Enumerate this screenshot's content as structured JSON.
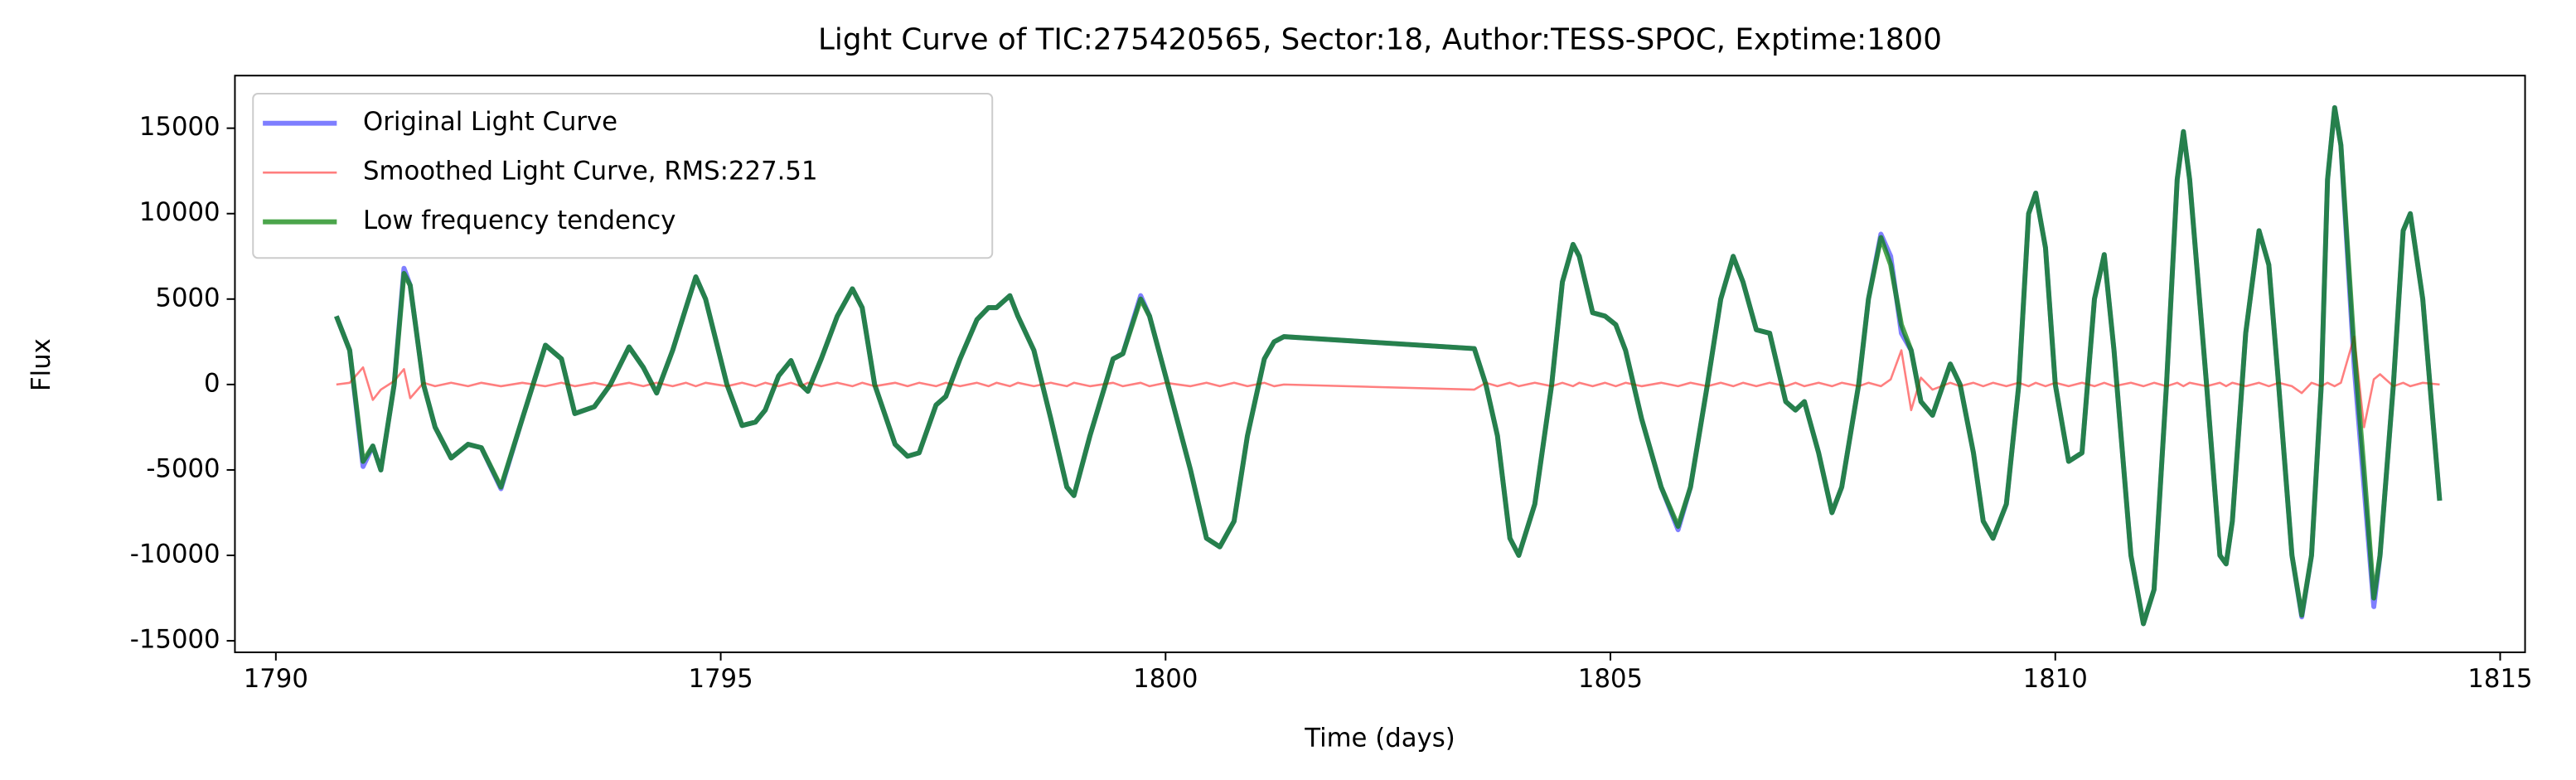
{
  "chart_data": {
    "type": "line",
    "title": "Light Curve of TIC:275420565, Sector:18, Author:TESS-SPOC, Exptime:1800",
    "xlabel": "Time (days)",
    "ylabel": "Flux",
    "xlim": [
      1789.54,
      1815.28
    ],
    "ylim": [
      -15673,
      18077
    ],
    "xticks": [
      1790,
      1795,
      1800,
      1805,
      1810,
      1815
    ],
    "yticks": [
      -15000,
      -10000,
      -5000,
      0,
      5000,
      10000,
      15000
    ],
    "legend": "upper left",
    "grid": false,
    "x": [
      1790.68,
      1790.83,
      1790.98,
      1791.09,
      1791.18,
      1791.33,
      1791.44,
      1791.51,
      1791.66,
      1791.79,
      1791.97,
      1792.16,
      1792.31,
      1792.53,
      1792.77,
      1793.03,
      1793.21,
      1793.36,
      1793.58,
      1793.76,
      1793.97,
      1794.13,
      1794.28,
      1794.46,
      1794.61,
      1794.72,
      1794.83,
      1795.07,
      1795.24,
      1795.39,
      1795.5,
      1795.65,
      1795.79,
      1795.9,
      1795.98,
      1796.13,
      1796.31,
      1796.48,
      1796.59,
      1796.73,
      1796.96,
      1797.1,
      1797.23,
      1797.42,
      1797.53,
      1797.69,
      1797.88,
      1798.01,
      1798.1,
      1798.25,
      1798.34,
      1798.52,
      1798.71,
      1798.89,
      1798.97,
      1799.15,
      1799.41,
      1799.52,
      1799.72,
      1799.82,
      1800.0,
      1800.28,
      1800.46,
      1800.61,
      1800.77,
      1800.92,
      1801.11,
      1801.22,
      1801.33,
      1803.47,
      1803.6,
      1803.73,
      1803.87,
      1803.97,
      1804.15,
      1804.34,
      1804.46,
      1804.58,
      1804.65,
      1804.8,
      1804.94,
      1805.06,
      1805.17,
      1805.35,
      1805.57,
      1805.76,
      1805.9,
      1806.09,
      1806.24,
      1806.38,
      1806.49,
      1806.64,
      1806.79,
      1806.97,
      1807.08,
      1807.18,
      1807.34,
      1807.49,
      1807.6,
      1807.79,
      1807.9,
      1808.04,
      1808.15,
      1808.27,
      1808.38,
      1808.49,
      1808.62,
      1808.82,
      1808.93,
      1809.08,
      1809.19,
      1809.3,
      1809.45,
      1809.59,
      1809.7,
      1809.78,
      1809.89,
      1810.0,
      1810.15,
      1810.3,
      1810.44,
      1810.55,
      1810.66,
      1810.85,
      1810.99,
      1811.11,
      1811.25,
      1811.37,
      1811.44,
      1811.51,
      1811.7,
      1811.85,
      1811.92,
      1811.99,
      1812.14,
      1812.29,
      1812.4,
      1812.51,
      1812.66,
      1812.77,
      1812.88,
      1812.99,
      1813.06,
      1813.14,
      1813.21,
      1813.36,
      1813.47,
      1813.58,
      1813.65,
      1813.8,
      1813.91,
      1813.99,
      1814.13,
      1814.32
    ],
    "series": [
      {
        "name": "Original Light Curve",
        "color": "#0000ff",
        "values": [
          4000,
          2000,
          -4800,
          -3600,
          -5000,
          0,
          6800,
          5800,
          0,
          -2500,
          -4300,
          -3500,
          -3700,
          -6100,
          -2000,
          2300,
          1500,
          -1700,
          -1300,
          0,
          2200,
          1000,
          -500,
          2000,
          4500,
          6300,
          5000,
          0,
          -2400,
          -2200,
          -1500,
          500,
          1400,
          0,
          -400,
          1500,
          4000,
          5600,
          4500,
          0,
          -3500,
          -4200,
          -4000,
          -1200,
          -700,
          1500,
          3800,
          4500,
          4500,
          5200,
          4000,
          2000,
          -2000,
          -6000,
          -6500,
          -3000,
          1500,
          1800,
          5200,
          4000,
          500,
          -5000,
          -9000,
          -9500,
          -8000,
          -3000,
          1500,
          2500,
          2800,
          2100,
          0,
          -3000,
          -9000,
          -10000,
          -7000,
          0,
          6000,
          8200,
          7500,
          4200,
          4000,
          3500,
          2000,
          -2000,
          -6000,
          -8500,
          -6000,
          0,
          5000,
          7500,
          6000,
          3200,
          3000,
          -1000,
          -1500,
          -1000,
          -4000,
          -7500,
          -6000,
          0,
          5000,
          8800,
          7500,
          3000,
          2000,
          -1000,
          -1800,
          1200,
          0,
          -4000,
          -8000,
          -9000,
          -7000,
          0,
          10000,
          11200,
          8000,
          0,
          -4500,
          -4000,
          5000,
          7600,
          2000,
          -10000,
          -14000,
          -12000,
          0,
          12000,
          14800,
          12000,
          0,
          -10000,
          -10500,
          -8000,
          3000,
          9000,
          7000,
          0,
          -10000,
          -13600,
          -10000,
          0,
          12000,
          16200,
          14000,
          1000,
          -6000,
          -13000,
          -10000,
          0,
          9000,
          10000,
          5000,
          -6800
        ]
      },
      {
        "name": "Smoothed Light Curve, RMS:227.51",
        "color": "#ff0000",
        "values": [
          0,
          100,
          1000,
          -900,
          -300,
          200,
          900,
          -800,
          100,
          -100,
          100,
          -100,
          100,
          -100,
          100,
          -100,
          100,
          -100,
          100,
          -100,
          100,
          -100,
          100,
          -100,
          100,
          -100,
          100,
          -100,
          100,
          -100,
          100,
          -100,
          100,
          -100,
          100,
          -100,
          100,
          -100,
          100,
          -100,
          100,
          -100,
          100,
          -100,
          100,
          -100,
          100,
          -100,
          100,
          -100,
          100,
          -100,
          100,
          -100,
          100,
          -100,
          100,
          -100,
          100,
          -100,
          100,
          -100,
          100,
          -100,
          100,
          -100,
          100,
          -100,
          0,
          -300,
          100,
          -100,
          100,
          -100,
          100,
          -100,
          100,
          -100,
          100,
          -100,
          100,
          -100,
          100,
          -100,
          100,
          -100,
          100,
          -100,
          100,
          -100,
          100,
          -100,
          100,
          -100,
          100,
          -100,
          100,
          -100,
          100,
          -100,
          100,
          -100,
          300,
          2000,
          -1500,
          400,
          -300,
          100,
          -100,
          100,
          -100,
          100,
          -100,
          100,
          -100,
          100,
          -100,
          100,
          -100,
          100,
          -100,
          100,
          -100,
          100,
          -100,
          100,
          -100,
          100,
          -100,
          100,
          -100,
          100,
          -100,
          100,
          -100,
          100,
          -100,
          100,
          -100,
          -500,
          100,
          -100,
          100,
          -100,
          100,
          2800,
          -2500,
          300,
          600,
          -100,
          100,
          -100,
          100,
          0
        ]
      },
      {
        "name": "Low frequency tendency",
        "color": "#008000",
        "values": [
          4000,
          2000,
          -4500,
          -3600,
          -5000,
          0,
          6500,
          5800,
          0,
          -2500,
          -4300,
          -3500,
          -3700,
          -6000,
          -2000,
          2300,
          1500,
          -1700,
          -1300,
          0,
          2200,
          1000,
          -500,
          2000,
          4500,
          6300,
          5000,
          0,
          -2400,
          -2200,
          -1500,
          500,
          1400,
          0,
          -400,
          1500,
          4000,
          5600,
          4500,
          0,
          -3500,
          -4200,
          -4000,
          -1200,
          -700,
          1500,
          3800,
          4500,
          4500,
          5200,
          4000,
          2000,
          -2000,
          -6000,
          -6500,
          -3000,
          1500,
          1800,
          5000,
          4000,
          500,
          -5000,
          -9000,
          -9500,
          -8000,
          -3000,
          1500,
          2500,
          2800,
          2100,
          0,
          -3000,
          -9000,
          -10000,
          -7000,
          0,
          6000,
          8200,
          7500,
          4200,
          4000,
          3500,
          2000,
          -2000,
          -6000,
          -8300,
          -6000,
          0,
          5000,
          7500,
          6000,
          3200,
          3000,
          -1000,
          -1500,
          -1000,
          -4000,
          -7500,
          -6000,
          0,
          5000,
          8600,
          7000,
          3500,
          2000,
          -1000,
          -1800,
          1200,
          0,
          -4000,
          -8000,
          -9000,
          -7000,
          0,
          10000,
          11200,
          8000,
          0,
          -4500,
          -4000,
          5000,
          7600,
          2000,
          -10000,
          -14000,
          -12000,
          0,
          12000,
          14800,
          12000,
          0,
          -10000,
          -10500,
          -8000,
          3000,
          9000,
          7000,
          0,
          -10000,
          -13500,
          -10000,
          0,
          12000,
          16200,
          14000,
          2000,
          -5000,
          -12500,
          -10000,
          0,
          9000,
          10000,
          5000,
          -6800
        ]
      }
    ]
  }
}
